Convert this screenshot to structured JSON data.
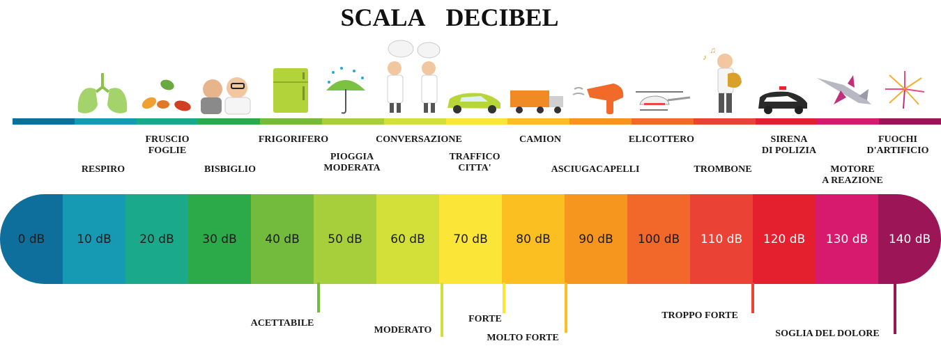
{
  "title": "SCALA DECIBEL",
  "scale": [
    {
      "label": "0 dB",
      "color": "#0e6f9c",
      "text": "#1a1a1a"
    },
    {
      "label": "10 dB",
      "color": "#1699b2",
      "text": "#1a1a1a"
    },
    {
      "label": "20 dB",
      "color": "#1aa98a",
      "text": "#1a1a1a"
    },
    {
      "label": "30 dB",
      "color": "#2caa4a",
      "text": "#1a1a1a"
    },
    {
      "label": "40 dB",
      "color": "#72bb3d",
      "text": "#1a1a1a"
    },
    {
      "label": "50 dB",
      "color": "#a7cf3b",
      "text": "#1a1a1a"
    },
    {
      "label": "60 dB",
      "color": "#d3e03a",
      "text": "#1a1a1a"
    },
    {
      "label": "70 dB",
      "color": "#fbe637",
      "text": "#1a1a1a"
    },
    {
      "label": "80 dB",
      "color": "#fbbf22",
      "text": "#1a1a1a"
    },
    {
      "label": "90 dB",
      "color": "#f6961e",
      "text": "#1a1a1a"
    },
    {
      "label": "100 dB",
      "color": "#f2682a",
      "text": "#1a1a1a"
    },
    {
      "label": "110 dB",
      "color": "#ea4336",
      "text": "#ffffff"
    },
    {
      "label": "120 dB",
      "color": "#e41f2e",
      "text": "#ffffff"
    },
    {
      "label": "130 dB",
      "color": "#d81a6f",
      "text": "#ffffff"
    },
    {
      "label": "140 dB",
      "color": "#9c1556",
      "text": "#ffffff"
    }
  ],
  "sources": [
    {
      "lines": [
        "RESPIRO"
      ]
    },
    {
      "lines": [
        "FRUSCIO",
        "FOGLIE"
      ]
    },
    {
      "lines": [
        "BISBIGLIO"
      ]
    },
    {
      "lines": [
        "FRIGORIFERO"
      ]
    },
    {
      "lines": [
        "PIOGGIA",
        "MODERATA"
      ]
    },
    {
      "lines": [
        "CONVERSAZIONE"
      ]
    },
    {
      "lines": [
        "TRAFFICO",
        "CITTA'"
      ]
    },
    {
      "lines": [
        "CAMION"
      ]
    },
    {
      "lines": [
        "ASCIUGACAPELLI"
      ]
    },
    {
      "lines": [
        "ELICOTTERO"
      ]
    },
    {
      "lines": [
        "TROMBONE"
      ]
    },
    {
      "lines": [
        "SIRENA",
        "DI POLIZIA"
      ]
    },
    {
      "lines": [
        "MOTORE",
        "A REAZIONE"
      ]
    },
    {
      "lines": [
        "FUOCHI",
        "D'ARTIFICIO"
      ]
    }
  ],
  "levels": [
    {
      "label": "ACETTABILE",
      "color": "#72bb3d"
    },
    {
      "label": "MODERATO",
      "color": "#d3e03a"
    },
    {
      "label": "FORTE",
      "color": "#fbe637"
    },
    {
      "label": "MOLTO FORTE",
      "color": "#fbbf22"
    },
    {
      "label": "TROPPO FORTE",
      "color": "#ea4336"
    },
    {
      "label": "SOGLIA DEL DOLORE",
      "color": "#9c1556"
    }
  ],
  "icons": [
    "lungs-icon",
    "leaves-icon",
    "whisper-icon",
    "fridge-icon",
    "umbrella-rain-icon",
    "conversation-icon",
    "car-icon",
    "truck-icon",
    "hairdryer-icon",
    "helicopter-icon",
    "trombone-player-icon",
    "police-car-icon",
    "jet-icon",
    "fireworks-icon"
  ]
}
